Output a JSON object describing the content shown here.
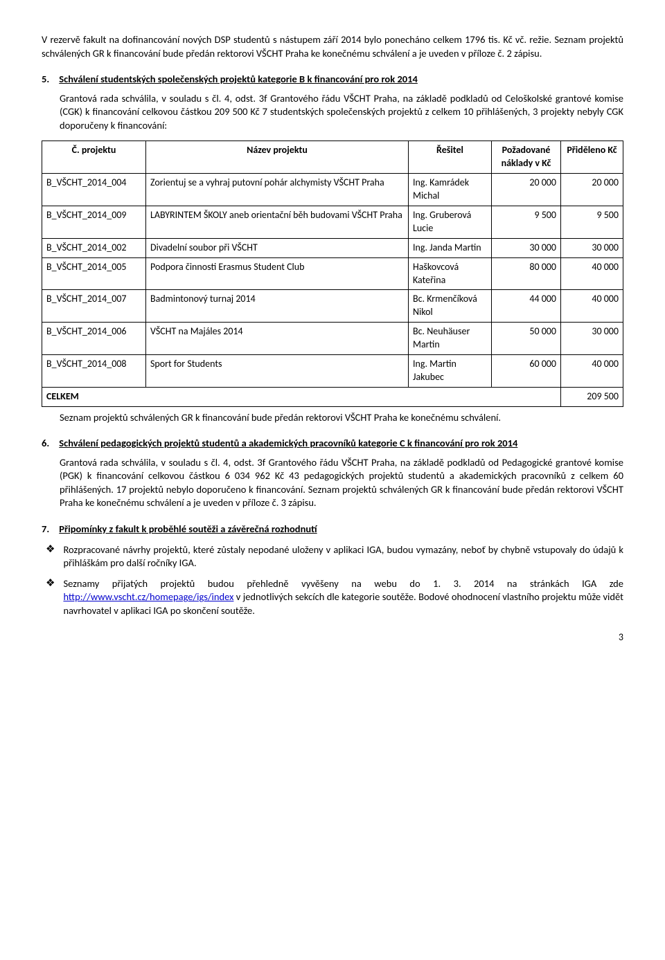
{
  "intro": {
    "p1": "V rezervě fakult na dofinancování nových DSP studentů s nástupem září 2014 bylo ponecháno celkem 1796 tis. Kč vč. režie.  Seznam projektů schválených GR k financování bude předán rektorovi VŠCHT Praha ke konečnému schválení a je uveden v příloze č. 2 zápisu."
  },
  "section5": {
    "num": "5.",
    "title": "Schválení studentských společenských projektů kategorie B k financování pro rok 2014",
    "body": "Grantová rada schválila, v souladu s čl. 4, odst. 3f Grantového řádu VŠCHT Praha, na základě podkladů od Celoškolské grantové komise (CGK) k financování celkovou částkou 209 500 Kč 7 studentských společenských projektů z celkem 10 přihlášených, 3 projekty nebyly CGK doporučeny k financování:"
  },
  "table": {
    "headers": {
      "c1": "Č. projektu",
      "c2": "Název projektu",
      "c3": "Řešitel",
      "c4": "Požadované náklady v Kč",
      "c5": "Přiděleno Kč"
    },
    "rows": [
      {
        "id": "B_VŠCHT_2014_004",
        "name": "Zorientuj se a vyhraj putovní pohár alchymisty VŠCHT Praha",
        "resitel": "Ing. Kamrádek Michal",
        "pozad": "20 000",
        "prid": "20 000"
      },
      {
        "id": "B_VŠCHT_2014_009",
        "name": "LABYRINTEM ŠKOLY aneb orientační běh budovami VŠCHT Praha",
        "resitel": "Ing. Gruberová Lucie",
        "pozad": "9 500",
        "prid": "9 500"
      },
      {
        "id": "B_VŠCHT_2014_002",
        "name": "Divadelní soubor při VŠCHT",
        "resitel": "Ing. Janda Martin",
        "pozad": "30 000",
        "prid": "30 000"
      },
      {
        "id": "B_VŠCHT_2014_005",
        "name": "Podpora činnosti Erasmus Student Club",
        "resitel": "Haškovcová Kateřina",
        "pozad": "80 000",
        "prid": "40 000"
      },
      {
        "id": "B_VŠCHT_2014_007",
        "name": "Badmintonový turnaj 2014",
        "resitel": "Bc. Krmenčíková Nikol",
        "pozad": "44 000",
        "prid": "40 000"
      },
      {
        "id": "B_VŠCHT_2014_006",
        "name": "VŠCHT na Majáles 2014",
        "resitel": "Bc. Neuhäuser Martin",
        "pozad": "50 000",
        "prid": "30 000"
      },
      {
        "id": "B_VŠCHT_2014_008",
        "name": "Sport for Students",
        "resitel": "Ing. Martin Jakubec",
        "pozad": "60 000",
        "prid": "40 000"
      }
    ],
    "total_label": "CELKEM",
    "total_value": "209 500"
  },
  "after_table": "Seznam projektů schválených GR k financování bude předán rektorovi VŠCHT Praha ke konečnému schválení.",
  "section6": {
    "num": "6.",
    "title": "Schválení pedagogických projektů studentů a akademických pracovníků kategorie C k financování pro rok 2014",
    "body": "Grantová rada schválila, v souladu s čl. 4, odst. 3f Grantového řádu VŠCHT Praha, na základě podkladů od Pedagogické grantové komise (PGK) k financování celkovou částkou 6 034 962 Kč 43 pedagogických projektů studentů a akademických pracovníků z celkem 60 přihlášených. 17 projektů nebylo doporučeno k financování. Seznam projektů schválených GR k financování bude předán rektorovi VŠCHT Praha ke konečnému schválení a je uveden v příloze č. 3 zápisu."
  },
  "section7": {
    "num": "7.",
    "title": "Připomínky z fakult k proběhlé soutěži a závěrečná rozhodnutí",
    "bullet1": "Rozpracované návrhy projektů, které zůstaly nepodané uloženy v aplikaci IGA, budou vymazány, neboť by chybně vstupovaly do údajů k přihláškám pro další ročníky IGA.",
    "bullet2_pre": "Seznamy přijatých projektů budou přehledně vyvěšeny na webu do 1. 3. 2014 na stránkách IGA zde ",
    "bullet2_link": "http://www.vscht.cz/homepage/igs/index",
    "bullet2_post": " v jednotlivých sekcích dle kategorie soutěže. Bodové ohodnocení vlastního projektu může vidět navrhovatel v aplikaci IGA po skončení soutěže."
  },
  "page_number": "3"
}
